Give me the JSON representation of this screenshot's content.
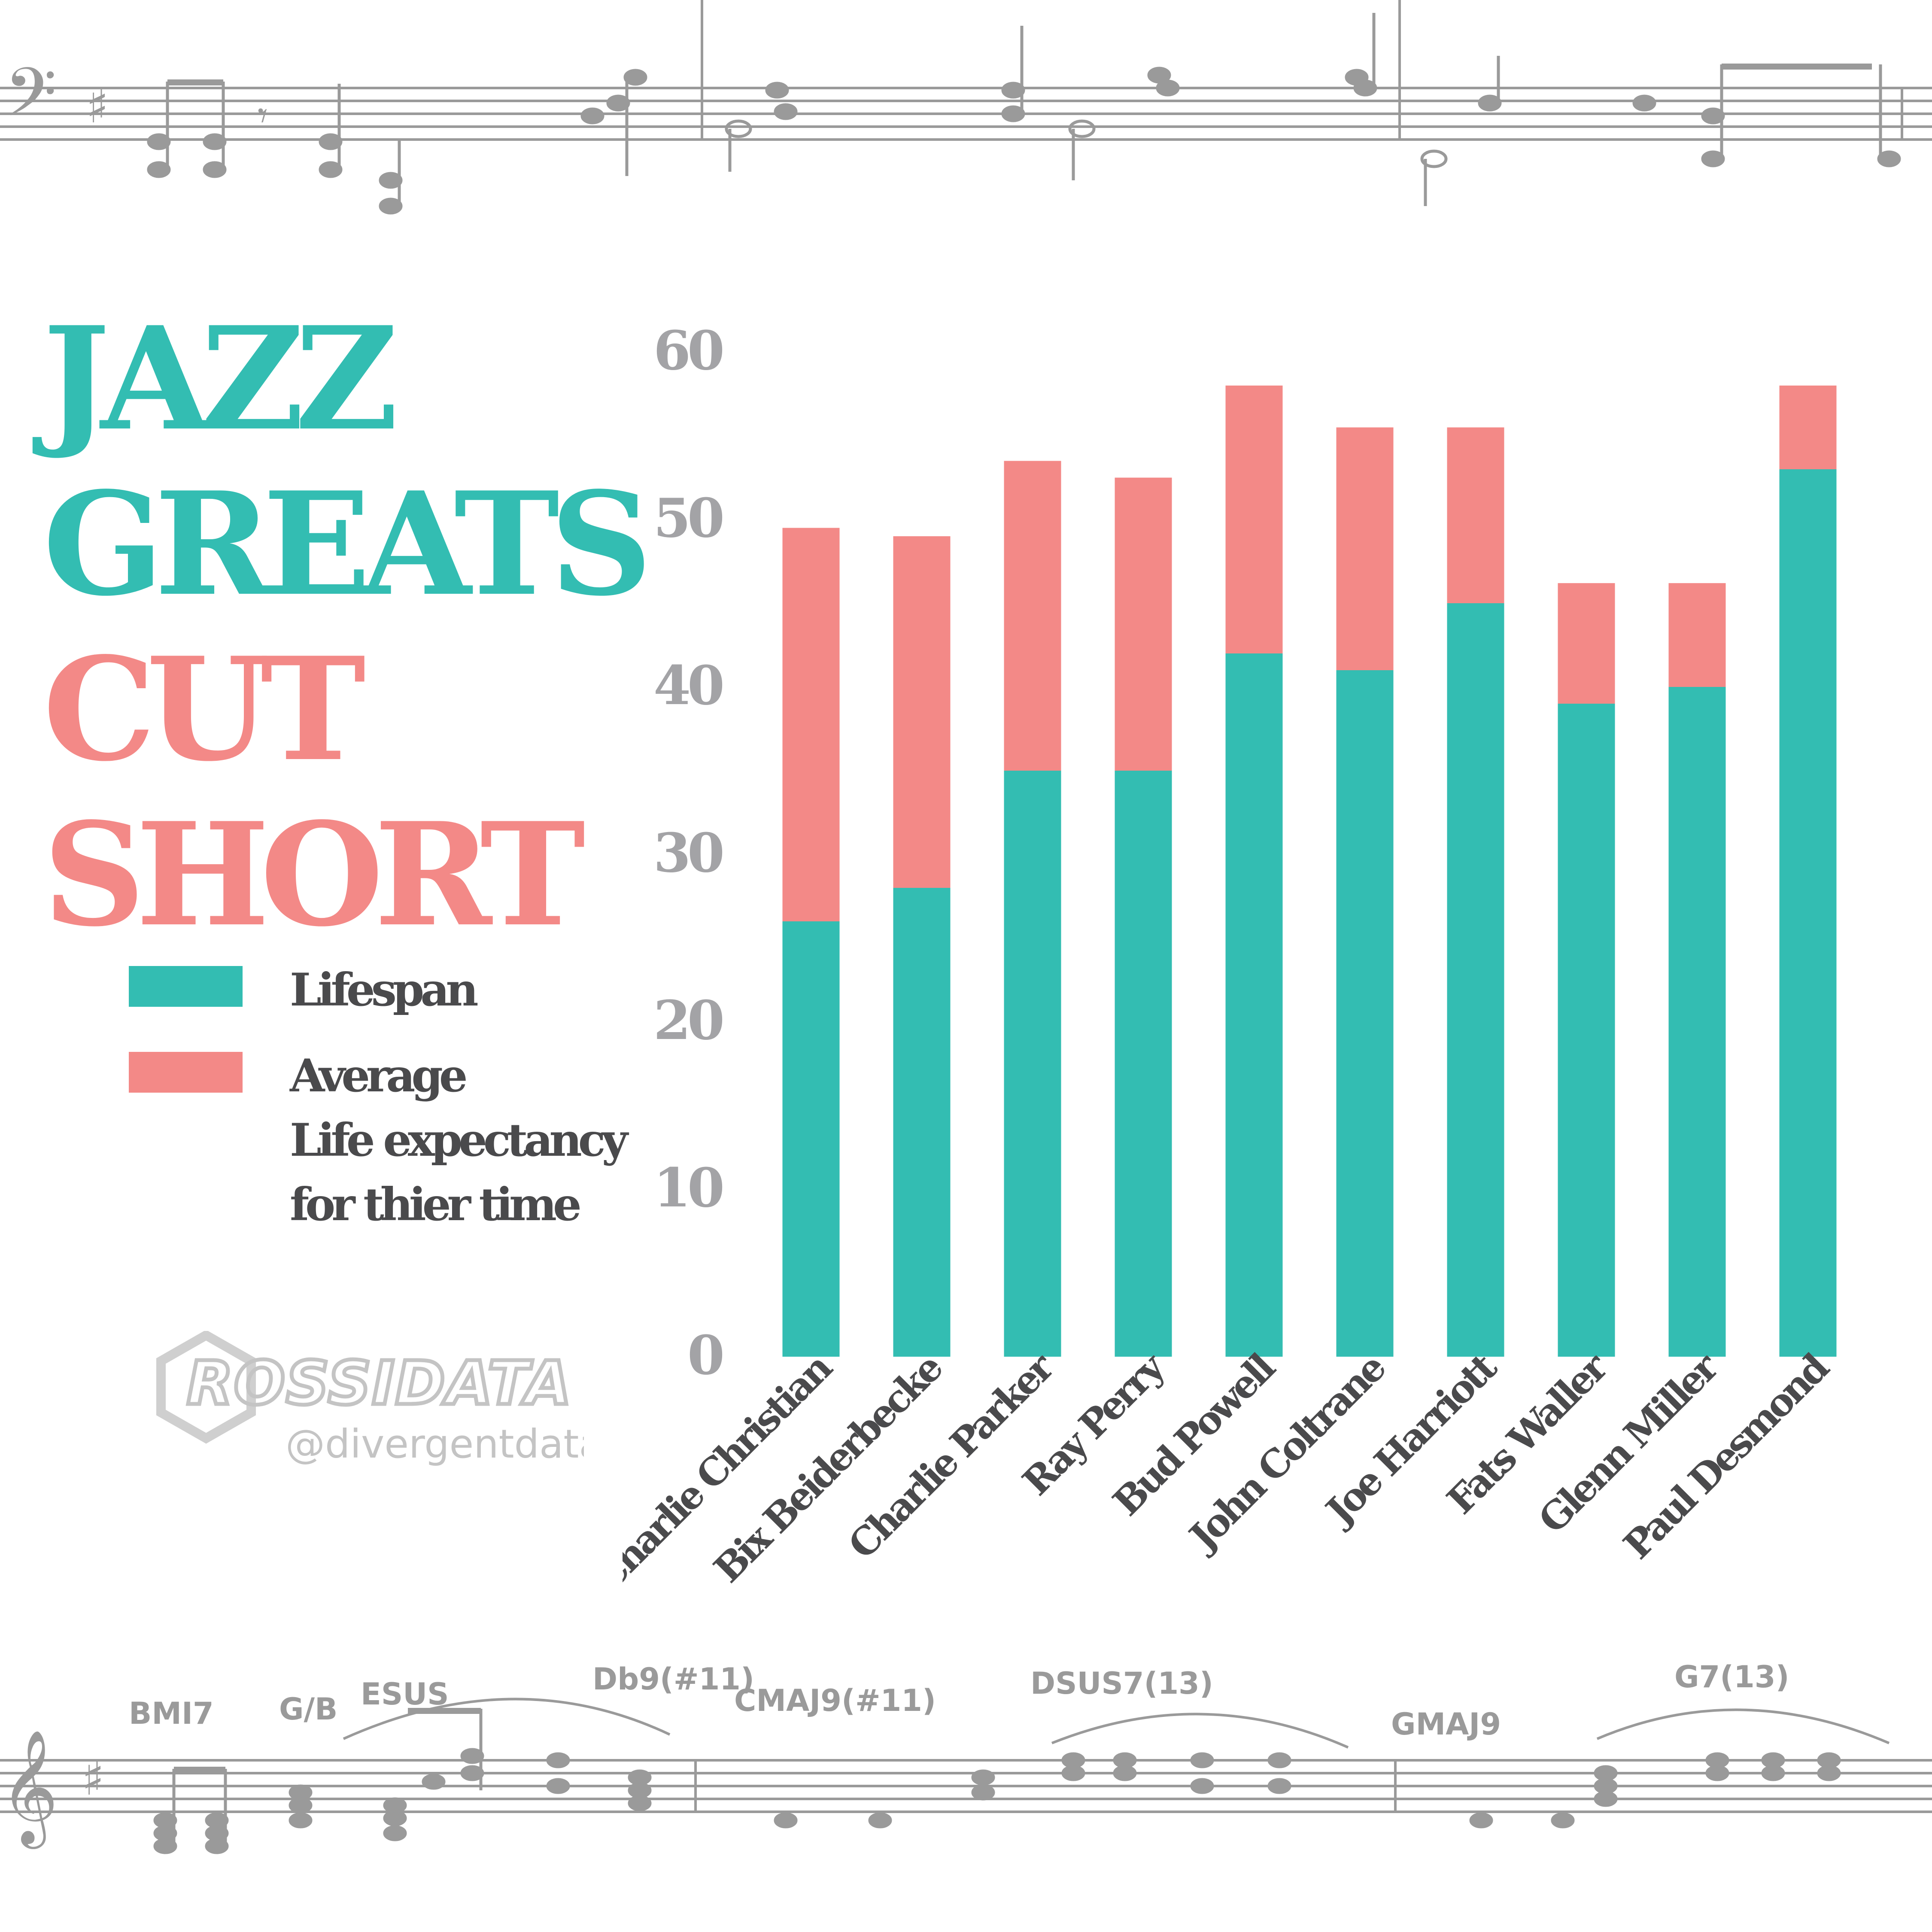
{
  "title": {
    "line1": "JAZZ",
    "line2": "GREATS",
    "line3": "CUT",
    "line4": "SHORT"
  },
  "colors": {
    "lifespan": "#33bdb2",
    "expectancy": "#f38987",
    "axis_text": "#a3a3a6",
    "label_text": "#4a4a4c",
    "sheet_music": "#9a9a9a"
  },
  "legend": {
    "lifespan_label": "Lifespan",
    "expectancy_line1": "Average",
    "expectancy_line2": "Life expectancy",
    "expectancy_line3": "for thier time"
  },
  "watermark": {
    "brand": "ROSSIDATA",
    "handle": "@divergentdata"
  },
  "sheet_music": {
    "chords": [
      "BMI7",
      "G/B",
      "ESUS",
      "Db9(#11)",
      "CMAJ9(#11)",
      "DSUS7(13)",
      "GMAJ9",
      "G7(13)"
    ]
  },
  "chart_data": {
    "type": "bar",
    "stacked": true,
    "categories": [
      "Charlie Christian",
      "Bix Beiderbecke",
      "Charlie Parker",
      "Ray Perry",
      "Bud Powell",
      "John Coltrane",
      "Joe Harriott",
      "Fats Waller",
      "Glenn Miller",
      "Paul Desmond"
    ],
    "series": [
      {
        "name": "Lifespan",
        "values": [
          26,
          28,
          35,
          35,
          42,
          41,
          45,
          39,
          40,
          53
        ]
      },
      {
        "name": "Average Life expectancy for thier time",
        "values": [
          23.5,
          21,
          18.5,
          17.5,
          16,
          14.5,
          10.5,
          7.2,
          6.2,
          5
        ]
      }
    ],
    "yticks": [
      "0",
      "10",
      "20",
      "30",
      "40",
      "50",
      "60"
    ],
    "ylim": [
      0,
      60
    ],
    "grid": false,
    "legend_position": "left"
  }
}
